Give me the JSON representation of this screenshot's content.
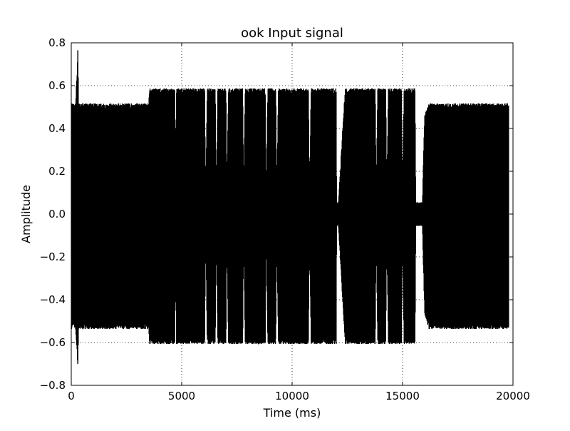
{
  "chart_data": {
    "type": "line",
    "title": "ook Input signal",
    "xlabel": "Time (ms)",
    "ylabel": "Amplitude",
    "xlim": [
      0,
      20000
    ],
    "ylim": [
      -0.8,
      0.8
    ],
    "x_ticks": [
      0,
      5000,
      10000,
      15000,
      20000
    ],
    "x_tick_labels": [
      "0",
      "5000",
      "10000",
      "15000",
      "20000"
    ],
    "y_ticks": [
      -0.8,
      -0.6,
      -0.4,
      -0.2,
      0.0,
      0.2,
      0.4,
      0.6,
      0.8
    ],
    "y_tick_labels": [
      "−0.8",
      "−0.6",
      "−0.4",
      "−0.2",
      "0.0",
      "0.2",
      "0.4",
      "0.6",
      "0.8"
    ],
    "grid": true,
    "legend": "none",
    "series": [
      {
        "color": "#000000",
        "description_of_envelope": "OOK burst amplitude envelope in data units",
        "x": [
          0,
          40,
          200,
          300,
          330,
          380,
          420,
          3500,
          3540,
          4690,
          4720,
          4760,
          6040,
          6080,
          6160,
          6520,
          6560,
          6640,
          7000,
          7040,
          7120,
          7760,
          7800,
          7880,
          8780,
          8820,
          8900,
          9260,
          9300,
          9380,
          10740,
          10780,
          10860,
          11990,
          12010,
          12100,
          12400,
          12500,
          12600,
          13760,
          13800,
          13880,
          14240,
          14280,
          14360,
          14950,
          14990,
          15070,
          15560,
          15600,
          15700,
          15900,
          16000,
          16200,
          19800
        ],
        "upper": [
          0.5,
          0.5,
          0.5,
          0.75,
          0.5,
          0.5,
          0.5,
          0.5,
          0.57,
          0.57,
          0.05,
          0.57,
          0.57,
          0.05,
          0.57,
          0.57,
          0.05,
          0.57,
          0.57,
          0.05,
          0.57,
          0.57,
          0.05,
          0.57,
          0.57,
          0.05,
          0.57,
          0.57,
          0.05,
          0.57,
          0.57,
          0.05,
          0.57,
          0.57,
          0.05,
          0.05,
          0.57,
          0.57,
          0.57,
          0.57,
          0.05,
          0.57,
          0.57,
          0.05,
          0.57,
          0.57,
          0.05,
          0.57,
          0.57,
          0.05,
          0.05,
          0.05,
          0.45,
          0.5,
          0.5
        ],
        "lower": [
          -0.55,
          -0.5,
          -0.52,
          -0.7,
          -0.52,
          -0.52,
          -0.52,
          -0.52,
          -0.59,
          -0.59,
          -0.05,
          -0.59,
          -0.59,
          -0.05,
          -0.59,
          -0.59,
          -0.05,
          -0.59,
          -0.59,
          -0.05,
          -0.59,
          -0.59,
          -0.05,
          -0.59,
          -0.59,
          -0.05,
          -0.59,
          -0.59,
          -0.05,
          -0.59,
          -0.59,
          -0.05,
          -0.59,
          -0.59,
          -0.05,
          -0.05,
          -0.59,
          -0.59,
          -0.59,
          -0.59,
          -0.05,
          -0.59,
          -0.59,
          -0.05,
          -0.59,
          -0.59,
          -0.05,
          -0.59,
          -0.59,
          -0.05,
          -0.05,
          -0.05,
          -0.45,
          -0.52,
          -0.52
        ]
      }
    ]
  }
}
